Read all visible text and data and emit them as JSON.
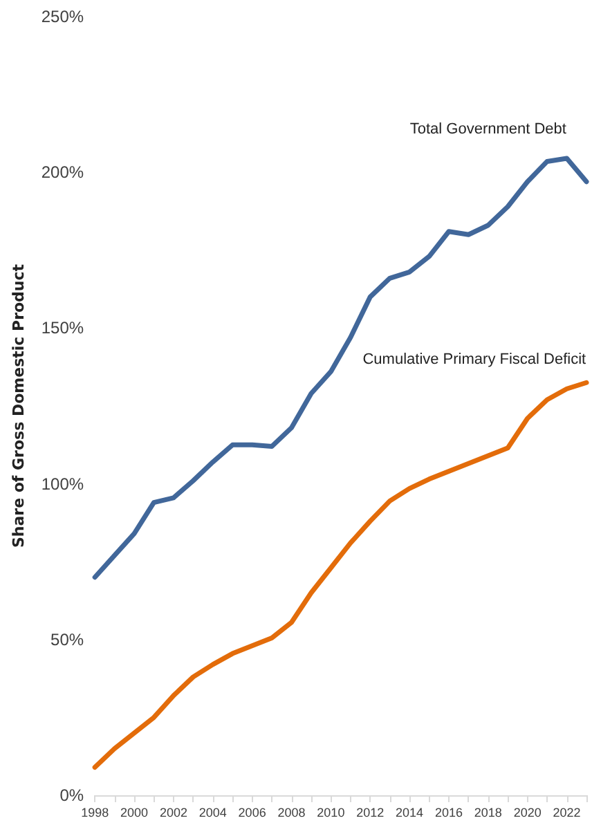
{
  "chart_data": {
    "type": "line",
    "ylabel": "Share of Gross Domestic Product",
    "x": [
      1998,
      1999,
      2000,
      2001,
      2002,
      2003,
      2004,
      2005,
      2006,
      2007,
      2008,
      2009,
      2010,
      2011,
      2012,
      2013,
      2014,
      2015,
      2016,
      2017,
      2018,
      2019,
      2020,
      2021,
      2022,
      2023
    ],
    "series": [
      {
        "name": "Total Government Debt",
        "color": "#41679a",
        "values": [
          70,
          77,
          84,
          94,
          95.5,
          101,
          107,
          112.5,
          112.5,
          112,
          118,
          129,
          136,
          147,
          160,
          166,
          168,
          173,
          181,
          180,
          183,
          189,
          197,
          203.5,
          204.5,
          197
        ]
      },
      {
        "name": "Cumulative Primary Fiscal Deficit",
        "color": "#e36c0a",
        "values": [
          9,
          15,
          20,
          25,
          32,
          38,
          42,
          45.5,
          48,
          50.5,
          55.5,
          65,
          73,
          81,
          88,
          94.5,
          98.5,
          101.5,
          104,
          106.5,
          109,
          111.5,
          121,
          127,
          130.5,
          132.5
        ]
      }
    ],
    "xlim": [
      1998,
      2023
    ],
    "xticks": [
      1998,
      2000,
      2002,
      2004,
      2006,
      2008,
      2010,
      2012,
      2014,
      2016,
      2018,
      2020,
      2022
    ],
    "ylim": [
      0,
      250
    ],
    "yticks": [
      {
        "value": 0,
        "label": "0%"
      },
      {
        "value": 50,
        "label": "50%"
      },
      {
        "value": 100,
        "label": "100%"
      },
      {
        "value": 150,
        "label": "150%"
      },
      {
        "value": 200,
        "label": "200%"
      },
      {
        "value": 250,
        "label": "250%"
      }
    ],
    "grid": false,
    "legend": false,
    "marker": "none",
    "line_style": "solid"
  }
}
